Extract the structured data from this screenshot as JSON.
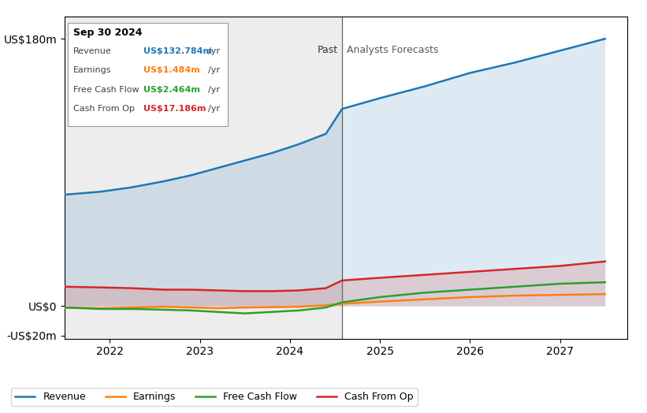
{
  "chart_data": {
    "type": "line",
    "x": [
      2021.5,
      2021.9,
      2022.25,
      2022.6,
      2022.9,
      2023.2,
      2023.5,
      2023.8,
      2024.1,
      2024.4,
      2024.58,
      2025.0,
      2025.5,
      2026.0,
      2026.5,
      2027.0,
      2027.5
    ],
    "series": [
      {
        "name": "Revenue",
        "values": [
          75,
          77,
          80,
          84,
          88,
          93,
          98,
          103,
          109,
          116,
          132.784,
          140,
          148,
          157,
          164,
          172,
          180
        ],
        "fill": true
      },
      {
        "name": "Earnings",
        "values": [
          -1,
          -1.5,
          -1,
          -0.5,
          -1,
          -1.5,
          -1,
          -0.8,
          -0.5,
          0.5,
          1.484,
          3,
          4.5,
          6,
          7,
          7.5,
          8
        ],
        "fill": false
      },
      {
        "name": "Free Cash Flow",
        "values": [
          -1,
          -2,
          -2,
          -2.5,
          -3,
          -4,
          -5,
          -4,
          -3,
          -1,
          2.464,
          6,
          9,
          11,
          13,
          15,
          16
        ],
        "fill": false
      },
      {
        "name": "Cash From Op",
        "values": [
          13,
          12.5,
          12,
          11,
          11,
          10.5,
          10,
          10,
          10.5,
          12,
          17.186,
          19,
          21,
          23,
          25,
          27,
          30
        ],
        "fill": true
      }
    ],
    "xlim": [
      2021.5,
      2027.75
    ],
    "xticks": [
      2022,
      2023,
      2024,
      2025,
      2026,
      2027
    ],
    "ylim": [
      -22,
      195
    ],
    "yticks": [
      {
        "value": -20,
        "label": "-US$20m"
      },
      {
        "value": 0,
        "label": "US$0"
      },
      {
        "value": 180,
        "label": "US$180m"
      }
    ],
    "grid": false,
    "legend": "lower left",
    "split": {
      "x": 2024.58,
      "before_label": "Past",
      "after_label": "Analysts Forecasts"
    },
    "tooltip": {
      "title": "Sep 30 2024",
      "rows": [
        {
          "label": "Revenue",
          "value": "US$132.784m",
          "unit": "/yr"
        },
        {
          "label": "Earnings",
          "value": "US$1.484m",
          "unit": "/yr"
        },
        {
          "label": "Free Cash Flow",
          "value": "US$2.464m",
          "unit": "/yr"
        },
        {
          "label": "Cash From Op",
          "value": "US$17.186m",
          "unit": "/yr"
        }
      ]
    }
  }
}
